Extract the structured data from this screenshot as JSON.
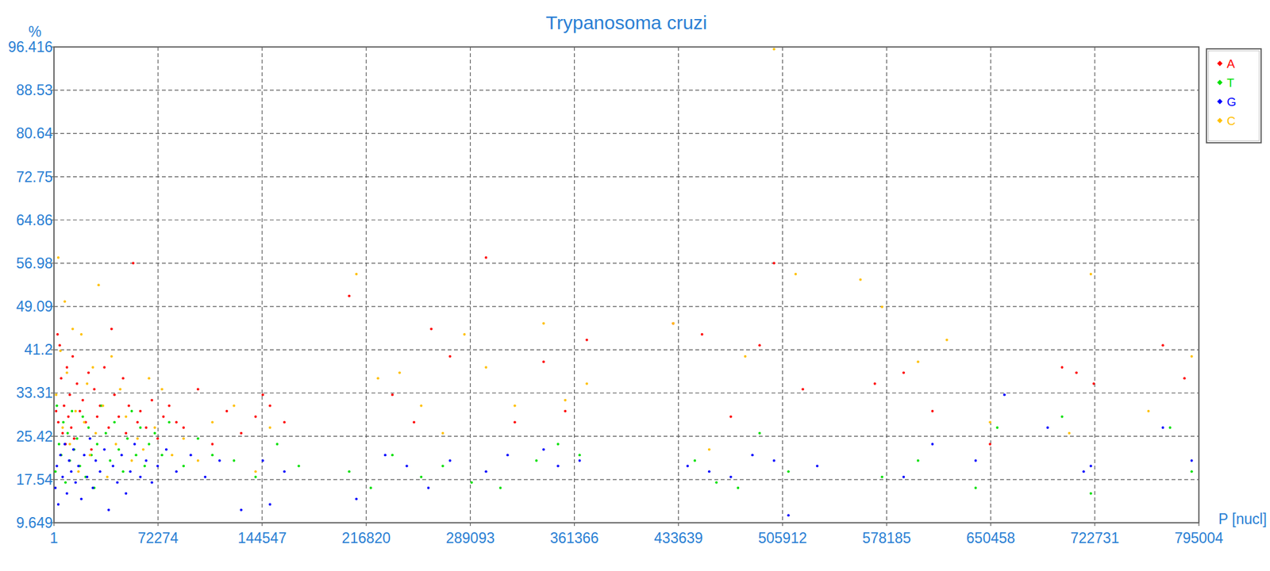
{
  "chart_data": {
    "type": "scatter",
    "title": "Trypanosoma cruzi",
    "x_label": "P [nucl]",
    "y_label": "%",
    "xlim": [
      1,
      795004
    ],
    "xticks": [
      1,
      72274,
      144547,
      216820,
      289093,
      361366,
      433639,
      505912,
      578185,
      650458,
      722731,
      795004
    ],
    "ylim": [
      9.649,
      96.416
    ],
    "yticks": [
      9.649,
      17.54,
      25.42,
      33.31,
      41.2,
      49.09,
      56.98,
      64.86,
      72.75,
      80.64,
      88.53,
      96.416
    ],
    "grid": true,
    "legend": "top-right",
    "marker": "dot",
    "series": [
      {
        "name": "A",
        "color": "#ff0000",
        "x": [
          1500,
          2500,
          3000,
          4000,
          5000,
          6000,
          7000,
          8000,
          9000,
          10000,
          11000,
          12000,
          13000,
          14000,
          16000,
          18000,
          20000,
          22000,
          24000,
          26000,
          28000,
          30000,
          32000,
          35000,
          38000,
          40000,
          42000,
          45000,
          48000,
          50000,
          52000,
          55000,
          58000,
          60000,
          64000,
          68000,
          72000,
          76000,
          80000,
          85000,
          90000,
          100000,
          110000,
          120000,
          130000,
          140000,
          145000,
          150000,
          160000,
          205000,
          235000,
          250000,
          262000,
          275000,
          300000,
          320000,
          340000,
          355000,
          370000,
          430000,
          450000,
          470000,
          490000,
          500000,
          520000,
          570000,
          590000,
          610000,
          650000,
          700000,
          710000,
          722000,
          770000,
          785000
        ],
        "values": [
          30,
          44,
          28,
          42,
          36,
          26,
          31,
          24,
          38,
          29,
          33,
          27,
          40,
          25,
          35,
          30,
          32,
          28,
          37,
          23,
          34,
          29,
          31,
          38,
          27,
          45,
          33,
          29,
          36,
          26,
          31,
          57,
          28,
          30,
          27,
          32,
          25,
          29,
          31,
          28,
          27,
          34,
          24,
          30,
          26,
          29,
          33,
          31,
          28,
          51,
          33,
          28,
          45,
          40,
          58,
          28,
          39,
          30,
          43,
          46,
          44,
          29,
          42,
          57,
          34,
          35,
          37,
          30,
          24,
          38,
          37,
          35,
          42,
          36
        ]
      },
      {
        "name": "T",
        "color": "#00e000",
        "x": [
          1000,
          2000,
          3500,
          5000,
          6500,
          8000,
          9500,
          11000,
          12500,
          14000,
          16000,
          18000,
          20000,
          22000,
          24000,
          26000,
          28000,
          30000,
          33000,
          36000,
          39000,
          42000,
          45000,
          48000,
          51000,
          54000,
          57000,
          60000,
          63000,
          66000,
          70000,
          75000,
          80000,
          90000,
          100000,
          110000,
          125000,
          140000,
          155000,
          170000,
          205000,
          220000,
          235000,
          255000,
          270000,
          290000,
          310000,
          335000,
          350000,
          365000,
          445000,
          460000,
          475000,
          490000,
          510000,
          575000,
          600000,
          640000,
          655000,
          700000,
          720000,
          775000,
          790000
        ],
        "values": [
          19,
          31,
          24,
          22,
          28,
          17,
          26,
          21,
          30,
          23,
          25,
          20,
          29,
          18,
          27,
          22,
          16,
          24,
          31,
          26,
          21,
          28,
          23,
          19,
          25,
          30,
          22,
          27,
          20,
          24,
          26,
          22,
          28,
          20,
          25,
          22,
          21,
          18,
          24,
          20,
          19,
          16,
          22,
          18,
          20,
          17,
          16,
          21,
          24,
          22,
          21,
          17,
          16,
          26,
          19,
          18,
          21,
          16,
          27,
          29,
          15,
          27,
          19
        ]
      },
      {
        "name": "G",
        "color": "#0000ff",
        "x": [
          1000,
          2000,
          3000,
          4500,
          6000,
          7500,
          9000,
          10500,
          12000,
          13500,
          15000,
          17000,
          19000,
          21000,
          23000,
          25000,
          27000,
          29000,
          32000,
          35000,
          38000,
          41000,
          44000,
          47000,
          50000,
          53000,
          56000,
          60000,
          64000,
          68000,
          72000,
          78000,
          85000,
          95000,
          105000,
          115000,
          130000,
          145000,
          150000,
          160000,
          210000,
          230000,
          245000,
          260000,
          275000,
          300000,
          315000,
          340000,
          350000,
          365000,
          440000,
          455000,
          470000,
          485000,
          500000,
          510000,
          530000,
          590000,
          610000,
          640000,
          660000,
          690000,
          715000,
          720000,
          770000,
          790000
        ],
        "values": [
          16,
          20,
          13,
          22,
          18,
          24,
          15,
          21,
          19,
          23,
          17,
          20,
          14,
          22,
          18,
          25,
          16,
          21,
          19,
          23,
          12,
          20,
          17,
          22,
          15,
          19,
          24,
          18,
          21,
          17,
          20,
          23,
          19,
          22,
          18,
          21,
          12,
          21,
          13,
          19,
          14,
          22,
          20,
          16,
          21,
          19,
          22,
          23,
          20,
          21,
          20,
          19,
          18,
          22,
          21,
          11,
          20,
          18,
          24,
          21,
          33,
          27,
          19,
          20,
          27,
          21
        ]
      },
      {
        "name": "C",
        "color": "#ffc000",
        "x": [
          1500,
          3000,
          4500,
          6000,
          7500,
          9000,
          11000,
          13000,
          15000,
          17000,
          19000,
          21000,
          23000,
          25000,
          27000,
          29000,
          31000,
          34000,
          37000,
          40000,
          43000,
          46000,
          50000,
          54000,
          58000,
          62000,
          66000,
          70000,
          75000,
          82000,
          90000,
          100000,
          110000,
          125000,
          140000,
          150000,
          210000,
          225000,
          240000,
          255000,
          270000,
          285000,
          300000,
          320000,
          340000,
          355000,
          370000,
          430000,
          455000,
          480000,
          500000,
          515000,
          560000,
          575000,
          600000,
          620000,
          650000,
          705000,
          720000,
          760000,
          790000
        ],
        "values": [
          33,
          58,
          41,
          27,
          50,
          37,
          24,
          45,
          30,
          19,
          44,
          28,
          35,
          22,
          38,
          26,
          53,
          31,
          18,
          40,
          24,
          34,
          29,
          21,
          25,
          23,
          36,
          27,
          34,
          22,
          25,
          21,
          28,
          31,
          19,
          27,
          55,
          36,
          37,
          31,
          26,
          44,
          38,
          31,
          46,
          32,
          35,
          46,
          23,
          40,
          96,
          55,
          54,
          49,
          39,
          43,
          28,
          26,
          55,
          30,
          40
        ]
      }
    ]
  }
}
